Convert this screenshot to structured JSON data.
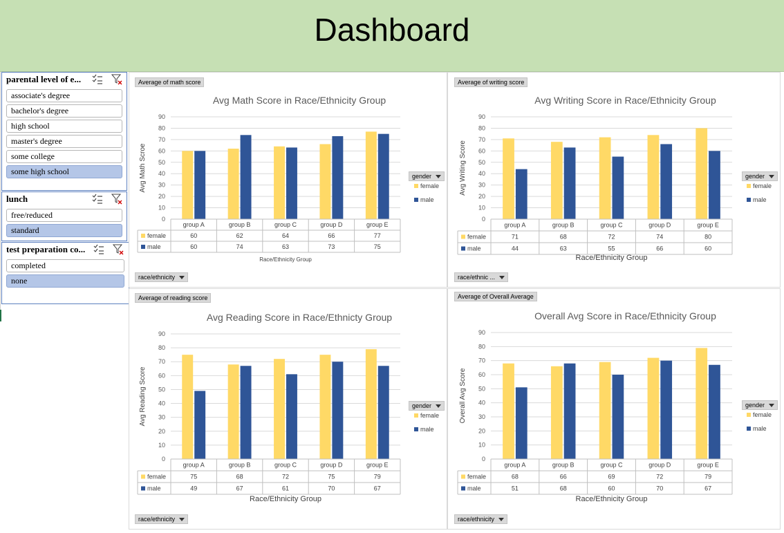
{
  "header": {
    "title": "Dashboard"
  },
  "slicers": [
    {
      "title": "parental level of e...",
      "items": [
        {
          "label": "associate's degree",
          "selected": false
        },
        {
          "label": "bachelor's degree",
          "selected": false
        },
        {
          "label": "high school",
          "selected": false
        },
        {
          "label": "master's degree",
          "selected": false
        },
        {
          "label": "some college",
          "selected": false
        },
        {
          "label": "some high school",
          "selected": true
        }
      ]
    },
    {
      "title": "lunch",
      "items": [
        {
          "label": "free/reduced",
          "selected": false
        },
        {
          "label": "standard",
          "selected": true
        }
      ]
    },
    {
      "title": "test preparation co...",
      "items": [
        {
          "label": "completed",
          "selected": false
        },
        {
          "label": "none",
          "selected": true
        }
      ]
    }
  ],
  "colors": {
    "female": "#ffd966",
    "male": "#2f5597"
  },
  "chart_data": [
    {
      "type": "bar",
      "field_value": "Average of math score",
      "axis_field": "race/ethnicity",
      "legend_field": "gender",
      "title": "Avg Math Score in Race/Ethnicity Group",
      "ylabel": "Avg Math Scroe",
      "xlabel": "Race/Ethnicity Group",
      "ylim": [
        0,
        90
      ],
      "yticks": [
        0,
        10,
        20,
        30,
        40,
        50,
        60,
        70,
        80,
        90
      ],
      "categories": [
        "group A",
        "group B",
        "group C",
        "group D",
        "group E"
      ],
      "series": [
        {
          "name": "female",
          "values": [
            60,
            62,
            64,
            66,
            77
          ]
        },
        {
          "name": "male",
          "values": [
            60,
            74,
            63,
            73,
            75
          ]
        }
      ],
      "legend_position": "right"
    },
    {
      "type": "bar",
      "field_value": "Average of writing score",
      "axis_field": "race/ethnic ...",
      "legend_field": "gender",
      "title": "Avg Writing Score in Race/Ethnicity Group",
      "ylabel": "Avg Writing Score",
      "xlabel": "Race/Ethnicity Group",
      "ylim": [
        0,
        90
      ],
      "yticks": [
        0,
        10,
        20,
        30,
        40,
        50,
        60,
        70,
        80,
        90
      ],
      "categories": [
        "group A",
        "group B",
        "group C",
        "group D",
        "group E"
      ],
      "series": [
        {
          "name": "female",
          "values": [
            71,
            68,
            72,
            74,
            80
          ]
        },
        {
          "name": "male",
          "values": [
            44,
            63,
            55,
            66,
            60
          ]
        }
      ],
      "legend_position": "right"
    },
    {
      "type": "bar",
      "field_value": "Average of reading score",
      "axis_field": "race/ethnicity",
      "legend_field": "gender",
      "title": "Avg Reading Score in Race/Ethnicty Group",
      "ylabel": "Avg Reading Score",
      "xlabel": "Race/Ethnicity Group",
      "ylim": [
        0,
        90
      ],
      "yticks": [
        0,
        10,
        20,
        30,
        40,
        50,
        60,
        70,
        80,
        90
      ],
      "categories": [
        "group A",
        "group B",
        "group C",
        "group D",
        "group E"
      ],
      "series": [
        {
          "name": "female",
          "values": [
            75,
            68,
            72,
            75,
            79
          ]
        },
        {
          "name": "male",
          "values": [
            49,
            67,
            61,
            70,
            67
          ]
        }
      ],
      "legend_position": "right"
    },
    {
      "type": "bar",
      "field_value": "Average of Overall Average",
      "axis_field": "race/ethnicity",
      "legend_field": "gender",
      "title": "Overall Avg Score in Race/Ethnicity Group",
      "ylabel": "Overall Avg Score",
      "xlabel": "Race/Ethnicity Group",
      "ylim": [
        0,
        90
      ],
      "yticks": [
        0,
        10,
        20,
        30,
        40,
        50,
        60,
        70,
        80,
        90
      ],
      "categories": [
        "group A",
        "group B",
        "group C",
        "group D",
        "group E"
      ],
      "series": [
        {
          "name": "female",
          "values": [
            68,
            66,
            69,
            72,
            79
          ]
        },
        {
          "name": "male",
          "values": [
            51,
            68,
            60,
            70,
            67
          ]
        }
      ],
      "legend_position": "right"
    }
  ]
}
